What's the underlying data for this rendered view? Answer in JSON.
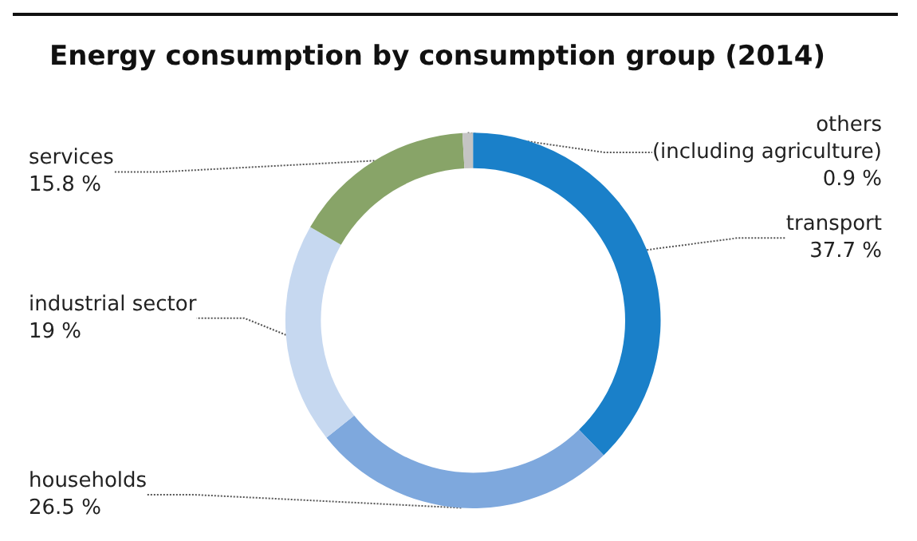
{
  "chart_data": {
    "type": "donut",
    "title": "Energy consumption by consumption group (2014)",
    "categories": [
      "transport",
      "households",
      "industrial sector",
      "services",
      "others\n(including agriculture)"
    ],
    "values": [
      37.7,
      26.5,
      19,
      15.8,
      0.9
    ],
    "value_labels": [
      "37.7 %",
      "26.5 %",
      "19 %",
      "15.8 %",
      "0.9 %"
    ],
    "colors": [
      "#1a80c9",
      "#7ea8dd",
      "#c6d8f0",
      "#88a468",
      "#c4c4c4"
    ],
    "legend": false
  }
}
